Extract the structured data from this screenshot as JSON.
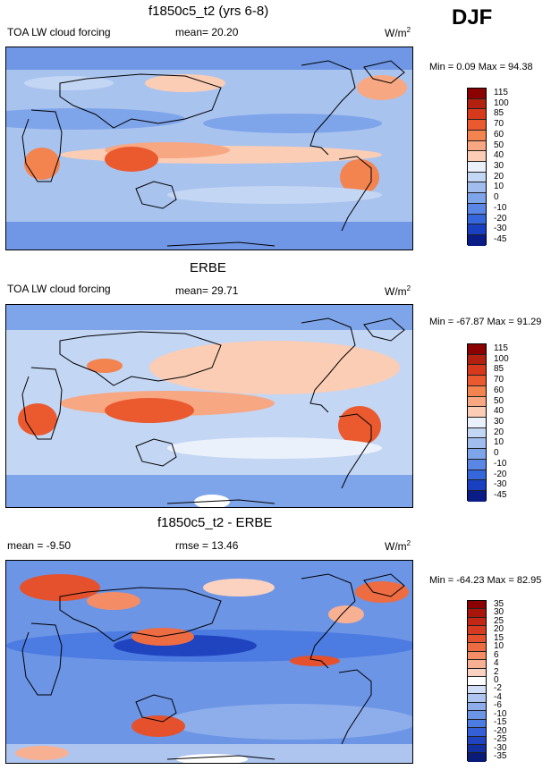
{
  "season": "DJF",
  "panels": [
    {
      "title": "f1850c5_t2 (yrs 6-8)",
      "left_label": "TOA LW cloud forcing",
      "center_label": "mean=  20.20",
      "units": "W/m",
      "units_sup": "2",
      "minmax": "Min =  0.09 Max =  94.38",
      "levels": [
        "115",
        "100",
        "85",
        "70",
        "60",
        "50",
        "40",
        "30",
        "20",
        "10",
        "0",
        "-10",
        "-20",
        "-30",
        "-45"
      ],
      "colors": [
        "#8b0000",
        "#b2200f",
        "#d6391c",
        "#ea5a2e",
        "#f3834f",
        "#f7a781",
        "#fbcdb5",
        "#eaf1fb",
        "#c3d6f3",
        "#a0bdee",
        "#7ea4ea",
        "#5a86e6",
        "#3566dc",
        "#1a40c2",
        "#0a1c86"
      ]
    },
    {
      "title": "ERBE",
      "left_label": "TOA LW cloud forcing",
      "center_label": "mean=  29.71",
      "units": "W/m",
      "units_sup": "2",
      "minmax": "Min = -67.87 Max =  91.29",
      "levels": [
        "115",
        "100",
        "85",
        "70",
        "60",
        "50",
        "40",
        "30",
        "20",
        "10",
        "0",
        "-10",
        "-20",
        "-30",
        "-45"
      ],
      "colors": [
        "#8b0000",
        "#b2200f",
        "#d6391c",
        "#ea5a2e",
        "#f3834f",
        "#f7a781",
        "#fbcdb5",
        "#eaf1fb",
        "#c3d6f3",
        "#a0bdee",
        "#7ea4ea",
        "#5a86e6",
        "#3566dc",
        "#1a40c2",
        "#0a1c86"
      ]
    },
    {
      "title": "f1850c5_t2 - ERBE",
      "left_label": "mean =  -9.50",
      "center_label": "rmse =  13.46",
      "units": "W/m",
      "units_sup": "2",
      "minmax": "Min = -64.23 Max =  82.95",
      "levels": [
        "35",
        "30",
        "25",
        "20",
        "15",
        "10",
        "6",
        "4",
        "2",
        "0",
        "-2",
        "-4",
        "-6",
        "-10",
        "-15",
        "-20",
        "-25",
        "-30",
        "-35"
      ],
      "colors": [
        "#8b0000",
        "#a8160b",
        "#c22716",
        "#d63a20",
        "#e5512d",
        "#ee6c42",
        "#f48d66",
        "#f8b092",
        "#fbd2bf",
        "#ffffff",
        "#d1def6",
        "#aec5f0",
        "#8eaeeb",
        "#6c95e6",
        "#4c7be1",
        "#345fd6",
        "#2043c0",
        "#1230a0",
        "#0a1c78"
      ]
    }
  ]
}
